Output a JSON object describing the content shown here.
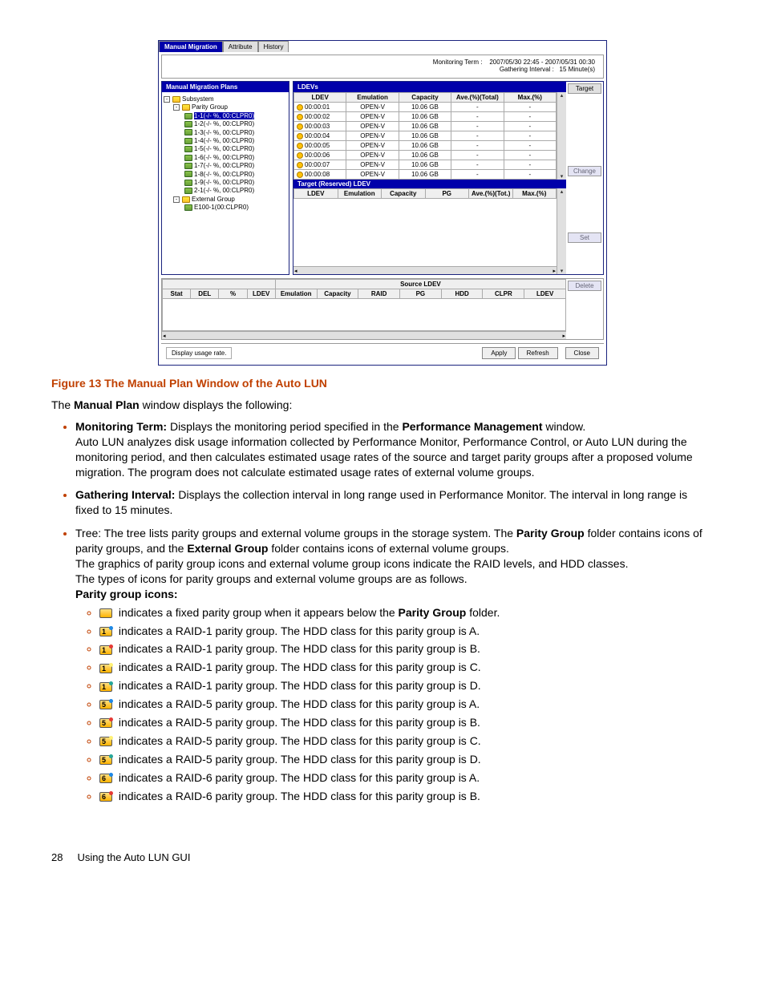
{
  "app": {
    "tabs": [
      "Manual Migration",
      "Attribute",
      "History"
    ],
    "active_tab": 0,
    "monitoring_term_label": "Monitoring Term :",
    "monitoring_term_value": "2007/05/30 22:45  -  2007/05/31 00:30",
    "gathering_label": "Gathering Interval :",
    "gathering_value": "15  Minute(s)",
    "left_title": "Manual Migration Plans",
    "right_title": "LDEVs",
    "tree": {
      "root": "Subsystem",
      "parity": "Parity Group",
      "items": [
        "1-1(-/- %, 00:CLPR0)",
        "1-2(-/- %, 00:CLPR0)",
        "1-3(-/- %, 00:CLPR0)",
        "1-4(-/- %, 00:CLPR0)",
        "1-5(-/- %, 00:CLPR0)",
        "1-6(-/- %, 00:CLPR0)",
        "1-7(-/- %, 00:CLPR0)",
        "1-8(-/- %, 00:CLPR0)",
        "1-9(-/- %, 00:CLPR0)",
        "2-1(-/- %, 00:CLPR0)"
      ],
      "external": "External Group",
      "ext_item": "E100-1(00:CLPR0)"
    },
    "ldev_cols": [
      "LDEV",
      "Emulation",
      "Capacity",
      "Ave.(%)(Total)",
      "Max.(%)"
    ],
    "ldev_rows": [
      [
        "00:00:01",
        "OPEN-V",
        "10.06 GB",
        "-",
        "-"
      ],
      [
        "00:00:02",
        "OPEN-V",
        "10.06 GB",
        "-",
        "-"
      ],
      [
        "00:00:03",
        "OPEN-V",
        "10.06 GB",
        "-",
        "-"
      ],
      [
        "00:00:04",
        "OPEN-V",
        "10.06 GB",
        "-",
        "-"
      ],
      [
        "00:00:05",
        "OPEN-V",
        "10.06 GB",
        "-",
        "-"
      ],
      [
        "00:00:06",
        "OPEN-V",
        "10.06 GB",
        "-",
        "-"
      ],
      [
        "00:00:07",
        "OPEN-V",
        "10.06 GB",
        "-",
        "-"
      ],
      [
        "00:00:08",
        "OPEN-V",
        "10.06 GB",
        "-",
        "-"
      ]
    ],
    "target_btn": "Target",
    "target_title": "Target (Reserved) LDEV",
    "target_cols": [
      "LDEV",
      "Emulation",
      "Capacity",
      "PG",
      "Ave.(%)(Tot.)",
      "Max.(%)"
    ],
    "change_btn": "Change",
    "set_btn": "Set",
    "src_title": "Source LDEV",
    "src_cols_a": [
      "Stat",
      "DEL",
      "%",
      "LDEV"
    ],
    "src_cols_b": [
      "Emulation",
      "Capacity",
      "RAID",
      "PG",
      "HDD",
      "CLPR",
      "LDEV"
    ],
    "delete_btn": "Delete",
    "status": "Display usage rate.",
    "apply": "Apply",
    "refresh": "Refresh",
    "close": "Close"
  },
  "doc": {
    "fig_title": "Figure 13 The Manual Plan Window of the Auto LUN",
    "intro_a": "The ",
    "intro_b": "Manual Plan",
    "intro_c": " window displays the following:",
    "b1_label": "Monitoring Term:",
    "b1_text": " Displays the monitoring period specified in the ",
    "b1_bold2": "Performance Management",
    "b1_tail": " window.",
    "b1_para": "Auto LUN analyzes disk usage information collected by Performance Monitor, Performance Control, or Auto LUN during the monitoring period, and then calculates estimated usage rates of the source and target parity groups after a proposed volume migration. The program does not calculate estimated usage rates of external volume groups.",
    "b2_label": "Gathering Interval:",
    "b2_text": " Displays the collection interval in long range used in Performance Monitor. The interval in long range is fixed to 15 minutes.",
    "b3_pre": "Tree: The tree lists parity groups and external volume groups in the storage system. The ",
    "b3_bold1": "Parity Group",
    "b3_mid": " folder contains icons of parity groups, and the ",
    "b3_bold2": "External Group",
    "b3_tail": " folder contains icons of external volume groups.",
    "b3_para1": "The graphics of parity group icons and external volume group icons indicate the RAID levels, and HDD classes.",
    "b3_para2": "The types of icons for parity groups and external volume groups are as follows.",
    "b3_bold3": "Parity group icons:",
    "icon_lines": [
      {
        "num": "",
        "dot": "",
        "txt_a": " indicates a fixed parity group when it appears below the ",
        "bold": "Parity Group",
        "txt_b": " folder."
      },
      {
        "num": "1",
        "dot": "#1e88e5",
        "txt_a": " indicates a RAID-1 parity group. The HDD class for this parity group is A.",
        "bold": "",
        "txt_b": ""
      },
      {
        "num": "1",
        "dot": "#e53935",
        "txt_a": " indicates a RAID-1 parity group. The HDD class for this parity group is B.",
        "bold": "",
        "txt_b": ""
      },
      {
        "num": "1",
        "dot": "#fff176",
        "txt_a": " indicates a RAID-1 parity group. The HDD class for this parity group is C.",
        "bold": "",
        "txt_b": ""
      },
      {
        "num": "1",
        "dot": "#26a69a",
        "txt_a": " indicates a RAID-1 parity group. The HDD class for this parity group is D.",
        "bold": "",
        "txt_b": ""
      },
      {
        "num": "5",
        "dot": "#1e88e5",
        "txt_a": " indicates a RAID-5 parity group. The HDD class for this parity group is A.",
        "bold": "",
        "txt_b": ""
      },
      {
        "num": "5",
        "dot": "#e53935",
        "txt_a": " indicates a RAID-5 parity group. The HDD class for this parity group is B.",
        "bold": "",
        "txt_b": ""
      },
      {
        "num": "5",
        "dot": "#fff176",
        "txt_a": " indicates a RAID-5 parity group. The HDD class for this parity group is C.",
        "bold": "",
        "txt_b": ""
      },
      {
        "num": "5",
        "dot": "#26a69a",
        "txt_a": " indicates a RAID-5 parity group. The HDD class for this parity group is D.",
        "bold": "",
        "txt_b": ""
      },
      {
        "num": "6",
        "dot": "#1e88e5",
        "txt_a": " indicates a RAID-6 parity group. The HDD class for this parity group is A.",
        "bold": "",
        "txt_b": ""
      },
      {
        "num": "6",
        "dot": "#e53935",
        "txt_a": " indicates a RAID-6 parity group. The HDD class for this parity group is B.",
        "bold": "",
        "txt_b": ""
      }
    ],
    "page_num": "28",
    "chapter": "Using the Auto LUN GUI"
  }
}
